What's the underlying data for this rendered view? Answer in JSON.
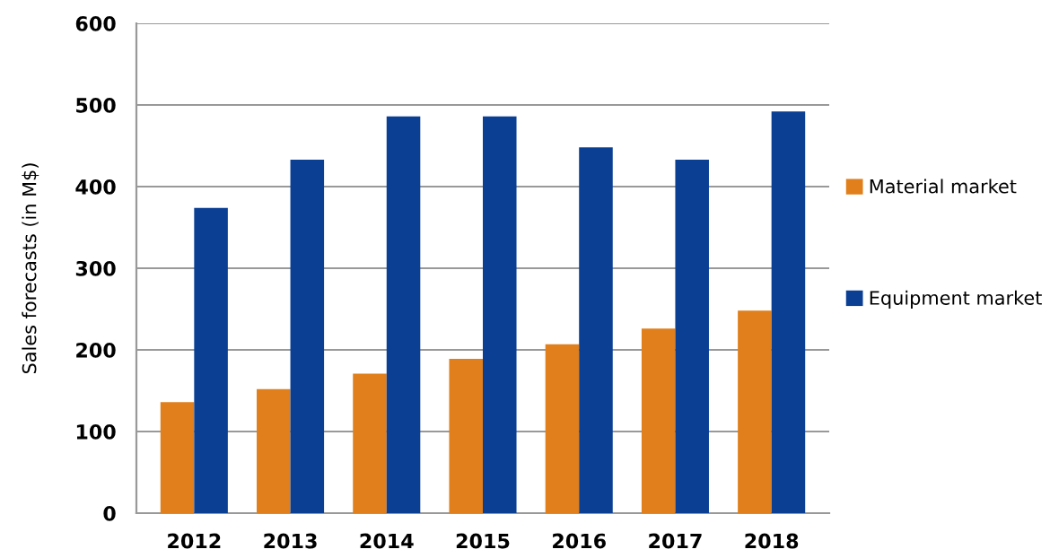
{
  "chart_data": {
    "type": "bar",
    "ylabel": "Sales forecasts (in M$)",
    "categories": [
      "2012",
      "2013",
      "2014",
      "2015",
      "2016",
      "2017",
      "2018"
    ],
    "series": [
      {
        "name": "Material market",
        "color": "#e07f1b",
        "values": [
          136,
          152,
          171,
          189,
          207,
          226,
          248
        ]
      },
      {
        "name": "Equipment market",
        "color": "#0b3f94",
        "values": [
          374,
          433,
          486,
          486,
          448,
          433,
          492
        ]
      }
    ],
    "ylim": [
      0,
      600
    ],
    "yticks": [
      0,
      100,
      200,
      300,
      400,
      500,
      600
    ],
    "grid": "y",
    "legend": "right"
  }
}
